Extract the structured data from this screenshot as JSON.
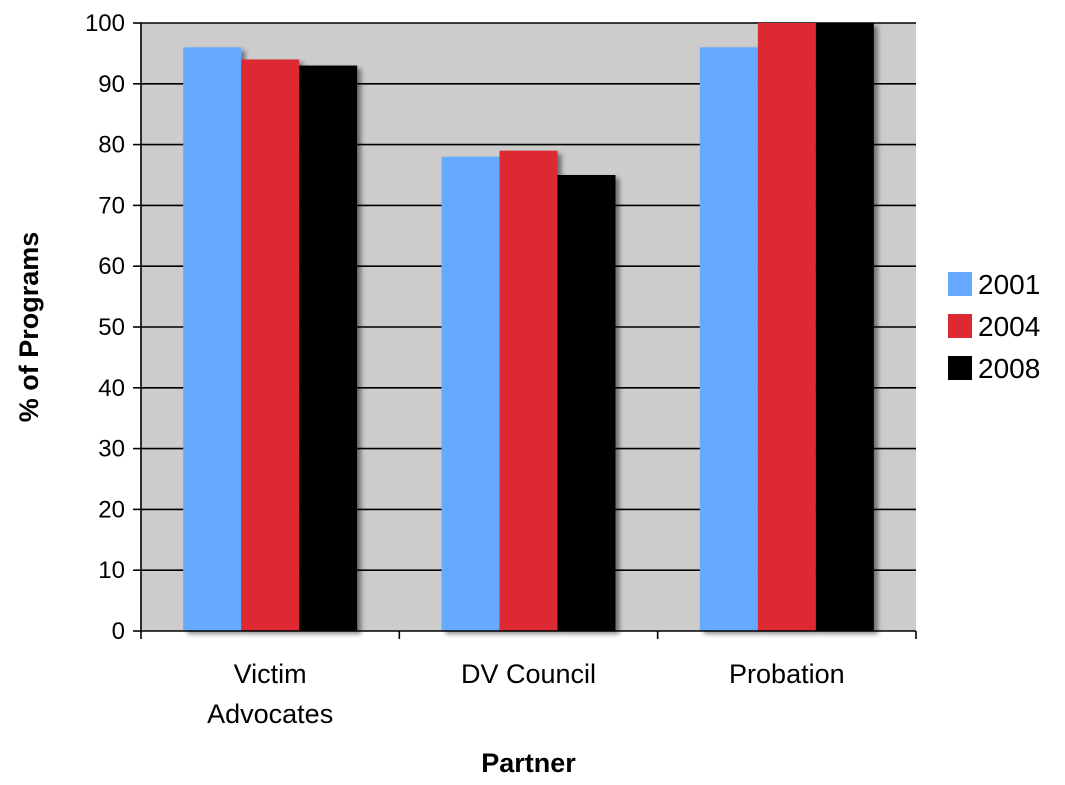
{
  "chart_data": {
    "type": "bar",
    "title": "",
    "xlabel": "Partner",
    "ylabel": "% of Programs",
    "ylim": [
      0,
      100
    ],
    "yticks": [
      0,
      10,
      20,
      30,
      40,
      50,
      60,
      70,
      80,
      90,
      100
    ],
    "grid": true,
    "legend_position": "right",
    "categories": [
      "Victim Advocates",
      "DV Council",
      "Probation"
    ],
    "category_lines": [
      [
        "Victim",
        "Advocates"
      ],
      [
        "DV Council"
      ],
      [
        "Probation"
      ]
    ],
    "series": [
      {
        "name": "2001",
        "color": "#66aaff",
        "values": [
          96,
          78,
          96
        ]
      },
      {
        "name": "2004",
        "color": "#dd2a30",
        "values": [
          94,
          79,
          100
        ]
      },
      {
        "name": "2008",
        "color": "#000000",
        "values": [
          93,
          75,
          100
        ]
      }
    ],
    "plot_background": "#cccccc",
    "gridline_color": "#000000"
  }
}
